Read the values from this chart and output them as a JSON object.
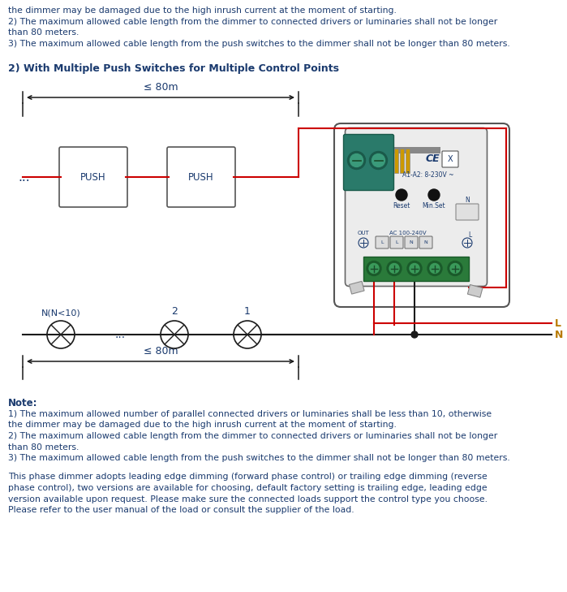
{
  "bg_color": "#ffffff",
  "text_color": "#1a3a6e",
  "wire_red": "#cc0000",
  "wire_black": "#1a1a1a",
  "teal": "#2a7a6a",
  "header_text": "2) With Multiple Push Switches for Multiple Control Points",
  "top_lines": [
    "the dimmer may be damaged due to the high inrush current at the moment of starting.",
    "2) The maximum allowed cable length from the dimmer to connected drivers or luminaries shall not be longer",
    "than 80 meters.",
    "3) The maximum allowed cable length from the push switches to the dimmer shall not be longer than 80 meters."
  ],
  "note_label": "Note:",
  "note_lines": [
    "1) The maximum allowed number of parallel connected drivers or luminaries shall be less than 10, otherwise",
    "the dimmer may be damaged due to the high inrush current at the moment of starting.",
    "2) The maximum allowed cable length from the dimmer to connected drivers or luminaries shall not be longer",
    "than 80 meters.",
    "3) The maximum allowed cable length from the push switches to the dimmer shall not be longer than 80 meters."
  ],
  "extra_para": [
    "This phase dimmer adopts leading edge dimming (forward phase control) or trailing edge dimming (reverse",
    "phase control), two versions are available for choosing, default factory setting is trailing edge, leading edge",
    "version available upon request. Please make sure the connected loads support the control type you choose.",
    "Please refer to the user manual of the load or consult the supplier of the load."
  ],
  "dim80m": "≤ 80m",
  "label_N_light": "N(N<10)",
  "label_2": "2",
  "label_1": "1",
  "label_L": "L",
  "label_N": "N",
  "label_PUSH": "PUSH",
  "label_dots": "...",
  "label_reset": "Reset",
  "label_minset": "Min.Set",
  "label_out": "OUT",
  "label_ac": "AC 100-240V",
  "label_a1a2": "A1-A2: 8-230V ~",
  "label_N_terminal": "N",
  "label_ce": "CE"
}
